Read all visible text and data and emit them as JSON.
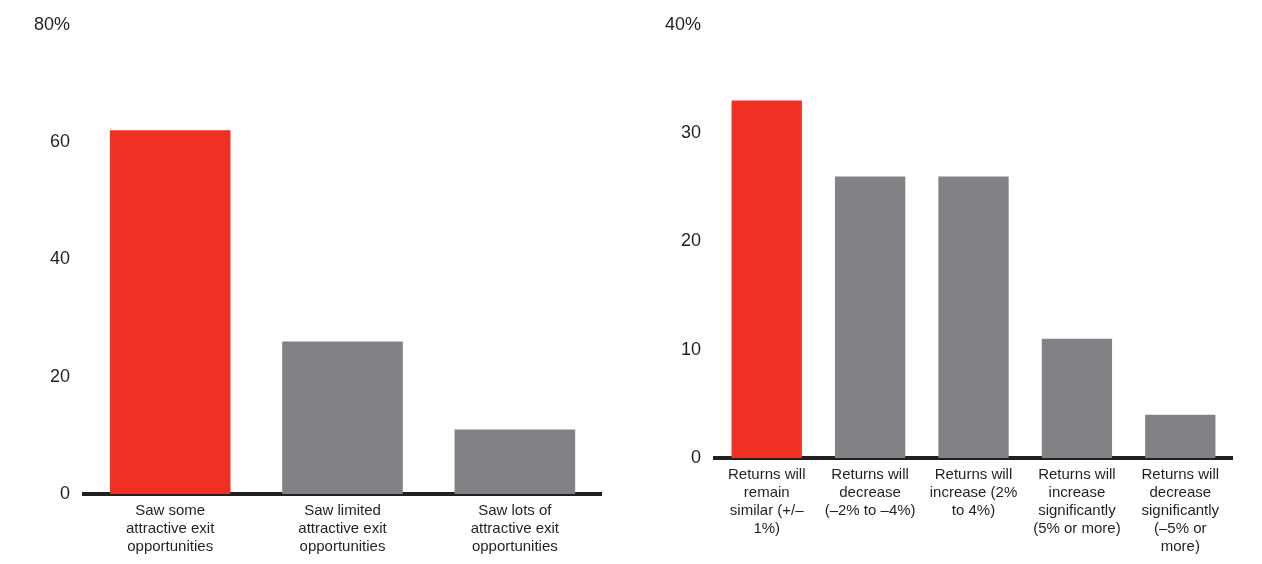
{
  "chart_data": [
    {
      "type": "bar",
      "categories": [
        "Saw some attractive exit opportunities",
        "Saw limited attractive exit opportunities",
        "Saw lots of attractive exit opportunities"
      ],
      "values": [
        62,
        26,
        11
      ],
      "colors": [
        "#ee3124",
        "#808285",
        "#808285"
      ],
      "ylim": [
        0,
        80
      ],
      "yticks": [
        0,
        20,
        40,
        60,
        {
          "value": 80,
          "label": "80%"
        }
      ],
      "grid": false,
      "legend": false
    },
    {
      "type": "bar",
      "categories": [
        "Returns will remain similar (+/– 1%)",
        "Returns will decrease (–2% to –4%)",
        "Returns will increase (2% to 4%)",
        "Returns will increase significantly (5% or more)",
        "Returns will decrease significantly (–5% or more)"
      ],
      "values": [
        33,
        26,
        26,
        11,
        4
      ],
      "colors": [
        "#ee3124",
        "#808285",
        "#808285",
        "#808285",
        "#808285"
      ],
      "ylim": [
        0,
        40
      ],
      "yticks": [
        0,
        10,
        20,
        30,
        {
          "value": 40,
          "label": "40%"
        }
      ],
      "grid": false,
      "legend": false
    }
  ]
}
